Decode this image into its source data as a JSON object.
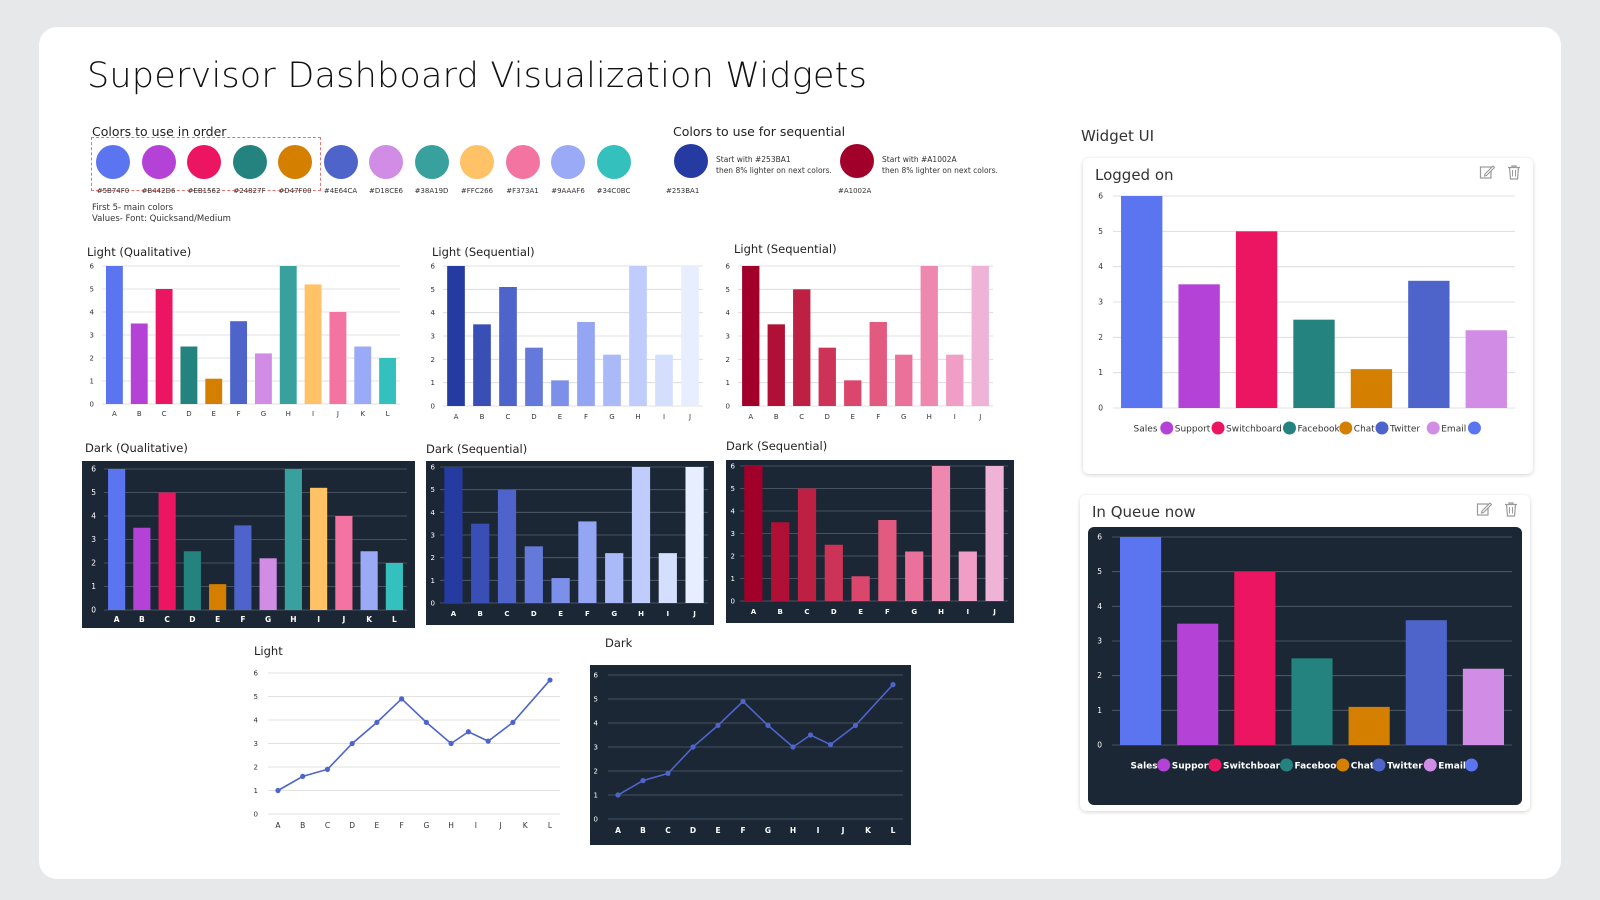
{
  "page": {
    "title": "Supervisor Dashboard Visualization Widgets"
  },
  "palette": {
    "label": "Colors to use in order",
    "colors": [
      "#5B74F0",
      "#B442D6",
      "#EB1562",
      "#24827F",
      "#D47F00",
      "#4E64CA",
      "#D18CE6",
      "#38A19D",
      "#FFC266",
      "#F373A1",
      "#9AAAF6",
      "#34C0BC"
    ],
    "hex_labels": [
      "#5B74F0",
      "#B442D6",
      "#EB1562",
      "#24827F",
      "#D47F00",
      "#4E64CA",
      "#D18CE6",
      "#38A19D",
      "#FFC266",
      "#F373A1",
      "#9AAAF6",
      "#34C0BC"
    ],
    "note1": "First 5- main colors",
    "note2": "Values- Font: Quicksand/Medium"
  },
  "sequential": {
    "label": "Colors to use for sequential",
    "blue": {
      "color": "#253BA1",
      "hex_label": "#253BA1",
      "line1": "Start with #253BA1",
      "line2": "then 8% lighter on next colors."
    },
    "red": {
      "color": "#A1002A",
      "hex_label": "#A1002A",
      "line1": "Start with #A1002A",
      "line2": "then 8% lighter on next colors."
    }
  },
  "widget_ui": {
    "label": "Widget UI",
    "logged_on": {
      "title": "Logged on"
    },
    "in_queue": {
      "title": "In Queue now"
    }
  },
  "chart_data": [
    {
      "id": "light-qualitative",
      "title": "Light (Qualitative)",
      "type": "bar",
      "theme": "light",
      "categories": [
        "A",
        "B",
        "C",
        "D",
        "E",
        "F",
        "G",
        "H",
        "I",
        "J",
        "K",
        "L"
      ],
      "values": [
        6,
        3.5,
        5,
        2.5,
        1.1,
        3.6,
        2.2,
        6,
        5.2,
        4,
        2.5,
        2
      ],
      "ylim": [
        0,
        6
      ],
      "colors": [
        "#5B74F0",
        "#B442D6",
        "#EB1562",
        "#24827F",
        "#D47F00",
        "#4E64CA",
        "#D18CE6",
        "#38A19D",
        "#FFC266",
        "#F373A1",
        "#9AAAF6",
        "#34C0BC"
      ]
    },
    {
      "id": "light-sequential-blue",
      "title": "Light (Sequential)",
      "type": "bar",
      "theme": "light",
      "categories": [
        "A",
        "B",
        "C",
        "D",
        "E",
        "F",
        "G",
        "H",
        "I",
        "J"
      ],
      "values": [
        6,
        3.5,
        5.1,
        2.5,
        1.1,
        3.6,
        2.2,
        6,
        2.2,
        6
      ],
      "ylim": [
        0,
        6
      ],
      "colors": [
        "#253BA1",
        "#3A4FB6",
        "#4E64CA",
        "#6479DA",
        "#7C90EA",
        "#93A5F3",
        "#AAB9F8",
        "#C0CCFB",
        "#D4DEFD",
        "#E6EEFF"
      ]
    },
    {
      "id": "light-sequential-red",
      "title": "Light (Sequential)",
      "type": "bar",
      "theme": "light",
      "categories": [
        "A",
        "B",
        "C",
        "D",
        "E",
        "F",
        "G",
        "H",
        "I",
        "J"
      ],
      "values": [
        6,
        3.5,
        5,
        2.5,
        1.1,
        3.6,
        2.2,
        6,
        2.2,
        6
      ],
      "ylim": [
        0,
        6
      ],
      "colors": [
        "#A1002A",
        "#B01035",
        "#BE2043",
        "#CC3357",
        "#DA466C",
        "#E35A81",
        "#EA7199",
        "#EF88AF",
        "#F09EC5",
        "#EFB3D8"
      ]
    },
    {
      "id": "dark-qualitative",
      "title": "Dark (Qualitative)",
      "type": "bar",
      "theme": "dark",
      "categories": [
        "A",
        "B",
        "C",
        "D",
        "E",
        "F",
        "G",
        "H",
        "I",
        "J",
        "K",
        "L"
      ],
      "values": [
        6,
        3.5,
        5,
        2.5,
        1.1,
        3.6,
        2.2,
        6,
        5.2,
        4,
        2.5,
        2
      ],
      "ylim": [
        0,
        6
      ],
      "colors": [
        "#5B74F0",
        "#B442D6",
        "#EB1562",
        "#24827F",
        "#D47F00",
        "#4E64CA",
        "#D18CE6",
        "#38A19D",
        "#FFC266",
        "#F373A1",
        "#9AAAF6",
        "#34C0BC"
      ]
    },
    {
      "id": "dark-sequential-blue",
      "title": "Dark (Sequential)",
      "type": "bar",
      "theme": "dark",
      "categories": [
        "A",
        "B",
        "C",
        "D",
        "E",
        "F",
        "G",
        "H",
        "I",
        "J"
      ],
      "values": [
        6,
        3.5,
        5,
        2.5,
        1.1,
        3.6,
        2.2,
        6,
        2.2,
        6
      ],
      "ylim": [
        0,
        6
      ],
      "colors": [
        "#253BA1",
        "#3A4FB6",
        "#4E64CA",
        "#6479DA",
        "#7C90EA",
        "#93A5F3",
        "#AAB9F8",
        "#C0CCFB",
        "#D4DEFD",
        "#E6EEFF"
      ]
    },
    {
      "id": "dark-sequential-red",
      "title": "Dark (Sequential)",
      "type": "bar",
      "theme": "dark",
      "categories": [
        "A",
        "B",
        "C",
        "D",
        "E",
        "F",
        "G",
        "H",
        "I",
        "J"
      ],
      "values": [
        6,
        3.5,
        5,
        2.5,
        1.1,
        3.6,
        2.2,
        6,
        2.2,
        6
      ],
      "ylim": [
        0,
        6
      ],
      "colors": [
        "#A1002A",
        "#B01035",
        "#BE2043",
        "#CC3357",
        "#DA466C",
        "#E35A81",
        "#EA7199",
        "#EF88AF",
        "#F09EC5",
        "#EFB3D8"
      ]
    },
    {
      "id": "line-light",
      "title": "Light",
      "type": "line",
      "theme": "light",
      "categories": [
        "A",
        "B",
        "C",
        "D",
        "E",
        "F",
        "G",
        "H",
        "I",
        "J",
        "K",
        "L"
      ],
      "x": [
        0,
        1,
        2,
        3,
        4,
        5,
        6,
        7,
        7.7,
        8.5,
        9.5,
        11
      ],
      "values": [
        1,
        1.6,
        1.9,
        3,
        3.9,
        4.9,
        3.9,
        3,
        3.5,
        3.1,
        3.9,
        5.7
      ],
      "ylim": [
        0,
        6
      ],
      "color": "#4E64CA"
    },
    {
      "id": "line-dark",
      "title": "Dark",
      "type": "line",
      "theme": "dark",
      "categories": [
        "A",
        "B",
        "C",
        "D",
        "E",
        "F",
        "G",
        "H",
        "I",
        "J",
        "K",
        "L"
      ],
      "x": [
        0,
        1,
        2,
        3,
        4,
        5,
        6,
        7,
        7.7,
        8.5,
        9.5,
        11
      ],
      "values": [
        1,
        1.6,
        1.9,
        3,
        3.9,
        4.9,
        3.9,
        3,
        3.5,
        3.1,
        3.9,
        5.6
      ],
      "ylim": [
        0,
        6
      ],
      "color": "#4E64CA"
    },
    {
      "id": "widget-logged-on",
      "title": "Logged on",
      "type": "bar",
      "theme": "light",
      "categories": [
        "Sales",
        "Support",
        "Switchboard",
        "Facebook",
        "Chat",
        "Twitter",
        "Email"
      ],
      "values": [
        6,
        3.5,
        5,
        2.5,
        1.1,
        3.6,
        2.2
      ],
      "ylim": [
        0,
        6
      ],
      "colors": [
        "#5B74F0",
        "#B442D6",
        "#EB1562",
        "#24827F",
        "#D47F00",
        "#4E64CA",
        "#D18CE6"
      ],
      "legend": [
        "Sales",
        "Support",
        "Switchboard",
        "Facebook",
        "Chat",
        "Twitter",
        "Email"
      ]
    },
    {
      "id": "widget-in-queue",
      "title": "In Queue now",
      "type": "bar",
      "theme": "dark",
      "categories": [
        "Sales",
        "Support",
        "Switchboard",
        "Facebook",
        "Chat",
        "Twitter",
        "Email"
      ],
      "values": [
        6,
        3.5,
        5,
        2.5,
        1.1,
        3.6,
        2.2
      ],
      "ylim": [
        0,
        6
      ],
      "colors": [
        "#5B74F0",
        "#B442D6",
        "#EB1562",
        "#24827F",
        "#D47F00",
        "#4E64CA",
        "#D18CE6"
      ],
      "legend": [
        "Sales",
        "Support",
        "Switchboard",
        "Facebook",
        "Chat",
        "Twitter",
        "Email"
      ]
    }
  ]
}
